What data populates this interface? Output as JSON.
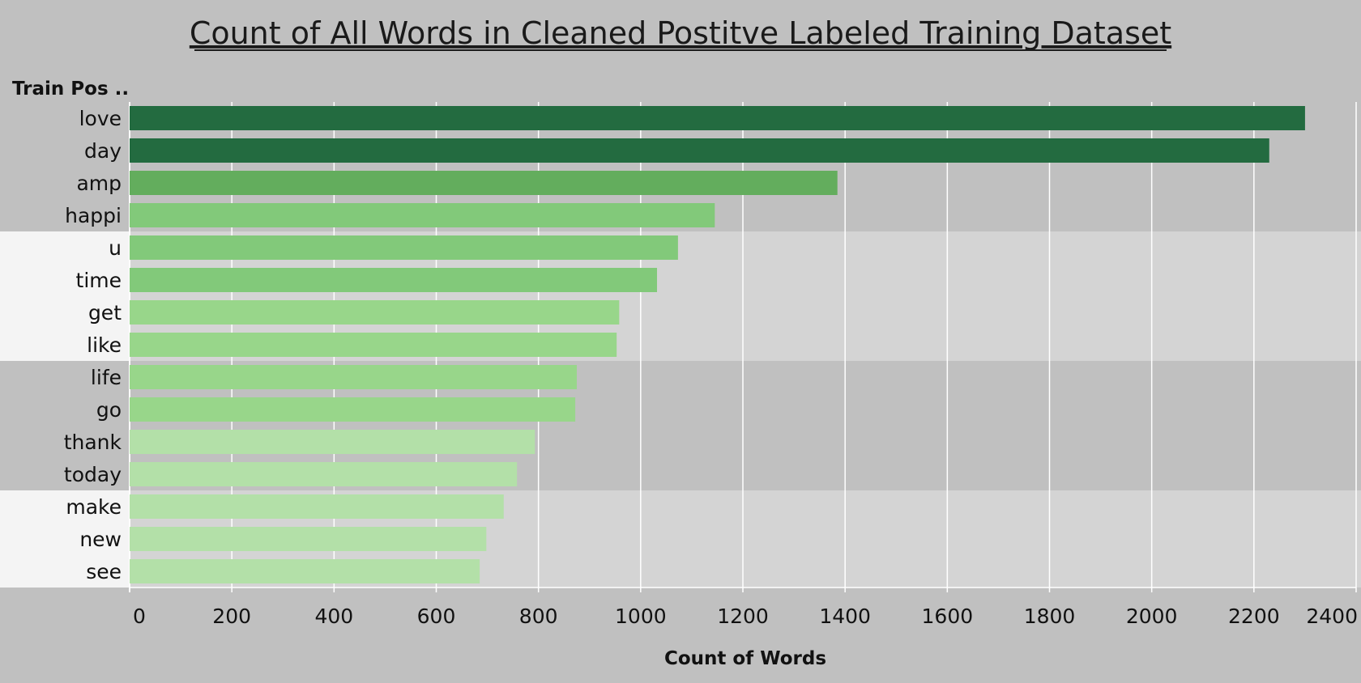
{
  "chart_data": {
    "type": "bar",
    "orientation": "horizontal",
    "title": "Count of All Words in Cleaned Postitve Labeled Training Dataset",
    "row_header": "Train Pos ..",
    "xlabel": "Count of Words",
    "ylabel": "",
    "xlim": [
      0,
      2400
    ],
    "xticks": [
      "0",
      "200",
      "400",
      "600",
      "800",
      "1000",
      "1200",
      "1400",
      "1600",
      "1800",
      "2000",
      "2200",
      "2400"
    ],
    "grid": true,
    "categories": [
      "love",
      "day",
      "amp",
      "happi",
      "u",
      "time",
      "get",
      "like",
      "life",
      "go",
      "thank",
      "today",
      "make",
      "new",
      "see"
    ],
    "values": [
      2300,
      2230,
      1385,
      1145,
      1073,
      1032,
      958,
      953,
      875,
      872,
      793,
      758,
      732,
      698,
      685
    ],
    "colors": {
      "background": "#c0c0c0",
      "band_light": "#d4d4d4",
      "label_band_light": "#f4f4f4",
      "grid": "#ffffff",
      "bar_scale": [
        "#b3e0a8",
        "#98d68a",
        "#82c97a",
        "#63ad5d",
        "#236b40"
      ]
    }
  }
}
